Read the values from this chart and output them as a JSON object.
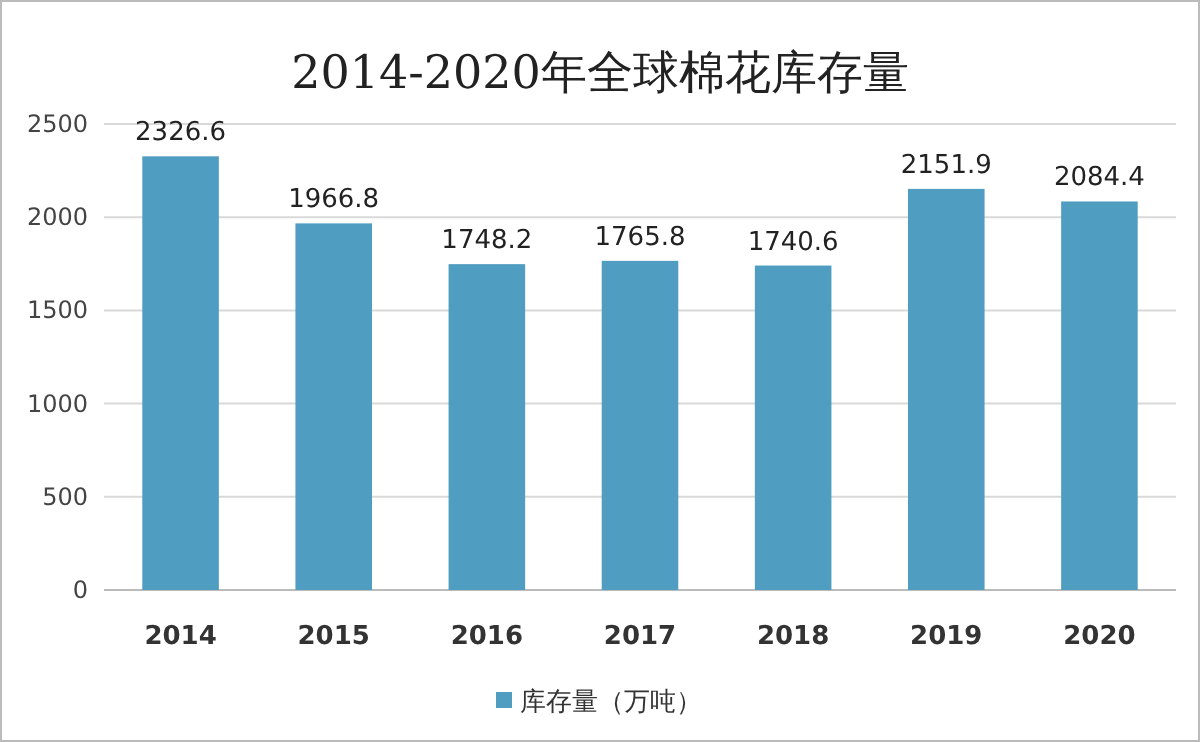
{
  "chart_data": {
    "type": "bar",
    "title": "2014-2020年全球棉花库存量",
    "categories": [
      "2014",
      "2015",
      "2016",
      "2017",
      "2018",
      "2019",
      "2020"
    ],
    "series": [
      {
        "name": "库存量（万吨）",
        "color": "#4f9dc0",
        "values": [
          2326.6,
          1966.8,
          1748.2,
          1765.8,
          1740.6,
          2151.9,
          2084.4
        ]
      }
    ],
    "ylim": [
      0,
      2500
    ],
    "yticks": [
      0,
      500,
      1000,
      1500,
      2000,
      2500
    ],
    "grid": "y",
    "legend": "bottom",
    "data_labels": true
  }
}
